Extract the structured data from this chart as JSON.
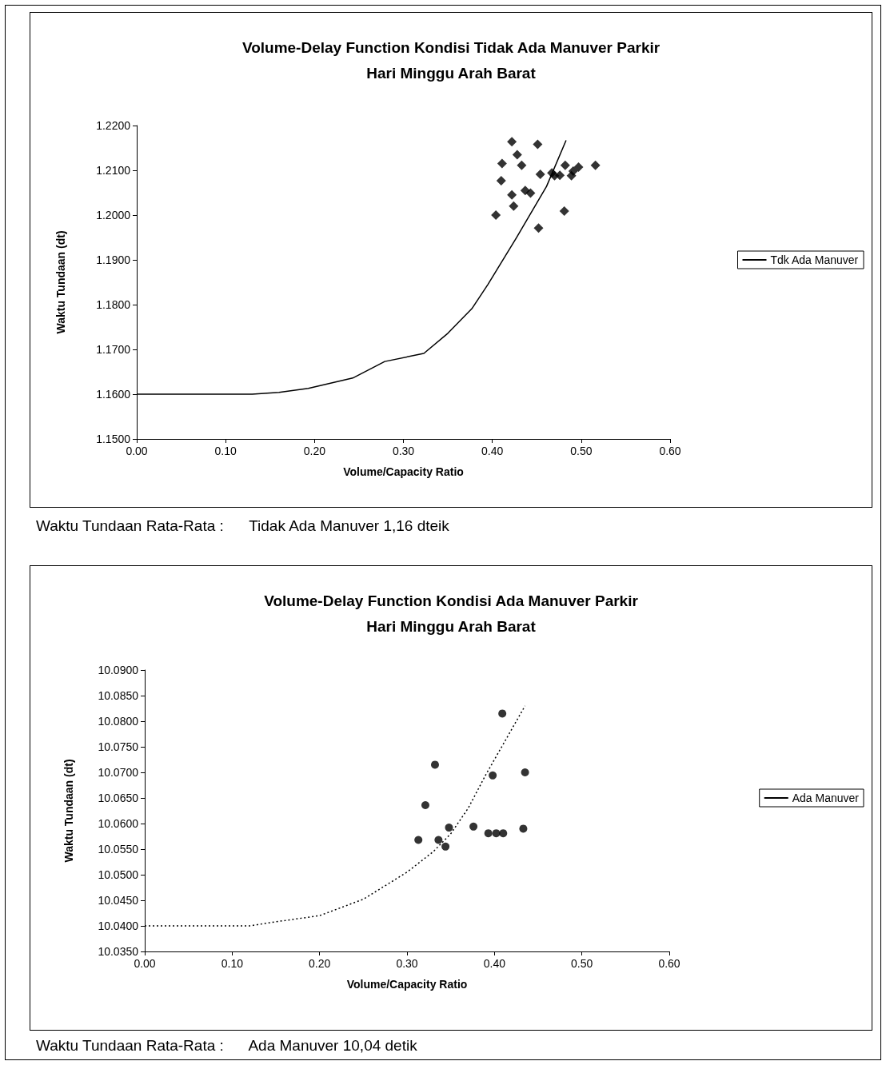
{
  "chart_data": [
    {
      "type": "scatter",
      "title": "Volume-Delay Function Kondisi Tidak Ada Manuver Parkir\nHari Minggu Arah Barat",
      "xlabel": "Volume/Capacity Ratio",
      "ylabel": "Waktu Tundaan (dt)",
      "xlim": [
        0,
        0.6
      ],
      "xticks": [
        {
          "value": 0,
          "label": "0.00"
        },
        {
          "value": 0.1,
          "label": "0.10"
        },
        {
          "value": 0.2,
          "label": "0.20"
        },
        {
          "value": 0.3,
          "label": "0.30"
        },
        {
          "value": 0.4,
          "label": "0.40"
        },
        {
          "value": 0.5,
          "label": "0.50"
        },
        {
          "value": 0.6,
          "label": "0.60"
        }
      ],
      "ylim": [
        1.15,
        1.22
      ],
      "yticks": [
        {
          "value": 1.15,
          "label": "1.1500"
        },
        {
          "value": 1.16,
          "label": "1.1600"
        },
        {
          "value": 1.17,
          "label": "1.1700"
        },
        {
          "value": 1.18,
          "label": "1.1800"
        },
        {
          "value": 1.19,
          "label": "1.1900"
        },
        {
          "value": 1.2,
          "label": "1.2000"
        },
        {
          "value": 1.21,
          "label": "1.2100"
        },
        {
          "value": 1.22,
          "label": "1.2200"
        }
      ],
      "grid": false,
      "legend": "right",
      "series": [
        {
          "type": "line",
          "name": "Tdk Ada Manuver",
          "color": "#000000",
          "marker": "none",
          "line_style": "solid",
          "x": [
            0,
            0.05,
            0.1,
            0.13,
            0.16,
            0.193,
            0.243,
            0.279,
            0.323,
            0.35,
            0.377,
            0.395,
            0.427,
            0.461,
            0.483
          ],
          "values": [
            1.16,
            1.16,
            1.16,
            1.16,
            1.1604,
            1.1613,
            1.1636,
            1.1673,
            1.1691,
            1.1736,
            1.1791,
            1.1845,
            1.1949,
            1.2064,
            1.2167
          ]
        },
        {
          "color": "#000000",
          "marker": "diamond",
          "x": [
            0.422,
            0.451,
            0.428,
            0.411,
            0.433,
            0.482,
            0.497,
            0.516,
            0.491,
            0.454,
            0.467,
            0.47,
            0.476,
            0.489,
            0.41,
            0.437,
            0.443,
            0.422,
            0.424,
            0.404,
            0.481,
            0.452
          ],
          "values": [
            1.2164,
            1.2158,
            1.2135,
            1.2115,
            1.2111,
            1.2111,
            1.2107,
            1.2111,
            1.2098,
            1.2091,
            1.2094,
            1.2088,
            1.2089,
            1.2088,
            1.2077,
            1.2055,
            1.2049,
            1.2045,
            1.202,
            1.2,
            1.2009,
            1.1971
          ]
        }
      ],
      "annotations": [
        "Waktu Tundaan Rata-Rata :      Tidak Ada Manuver 1,16 dteik"
      ]
    },
    {
      "type": "scatter",
      "title": "Volume-Delay Function Kondisi Ada Manuver Parkir\nHari Minggu Arah Barat",
      "xlabel": "Volume/Capacity Ratio",
      "ylabel": "Waktu Tundaan (dt)",
      "xlim": [
        0,
        0.6
      ],
      "xticks": [
        {
          "value": 0,
          "label": "0.00"
        },
        {
          "value": 0.1,
          "label": "0.10"
        },
        {
          "value": 0.2,
          "label": "0.20"
        },
        {
          "value": 0.3,
          "label": "0.30"
        },
        {
          "value": 0.4,
          "label": "0.40"
        },
        {
          "value": 0.5,
          "label": "0.50"
        },
        {
          "value": 0.6,
          "label": "0.60"
        }
      ],
      "ylim": [
        10.035,
        10.09
      ],
      "yticks": [
        {
          "value": 10.035,
          "label": "10.0350"
        },
        {
          "value": 10.04,
          "label": "10.0400"
        },
        {
          "value": 10.045,
          "label": "10.0450"
        },
        {
          "value": 10.05,
          "label": "10.0500"
        },
        {
          "value": 10.055,
          "label": "10.0550"
        },
        {
          "value": 10.06,
          "label": "10.0600"
        },
        {
          "value": 10.065,
          "label": "10.0650"
        },
        {
          "value": 10.07,
          "label": "10.0700"
        },
        {
          "value": 10.075,
          "label": "10.0750"
        },
        {
          "value": 10.08,
          "label": "10.0800"
        },
        {
          "value": 10.085,
          "label": "10.0850"
        },
        {
          "value": 10.09,
          "label": "10.0900"
        }
      ],
      "grid": false,
      "legend": "right",
      "series": [
        {
          "type": "line",
          "name": "Ada Manuver",
          "color": "#000000",
          "marker": "none",
          "line_style": "dotted",
          "x": [
            0,
            0.05,
            0.1,
            0.12,
            0.15,
            0.2,
            0.25,
            0.3,
            0.33,
            0.35,
            0.37,
            0.39,
            0.41,
            0.435
          ],
          "values": [
            10.04,
            10.04,
            10.04,
            10.04,
            10.0408,
            10.042,
            10.0452,
            10.0505,
            10.0545,
            10.058,
            10.063,
            10.0695,
            10.0755,
            10.083
          ]
        },
        {
          "color": "#000000",
          "marker": "circle",
          "x": [
            0.409,
            0.332,
            0.398,
            0.435,
            0.321,
            0.376,
            0.348,
            0.393,
            0.402,
            0.41,
            0.433,
            0.313,
            0.336,
            0.344
          ],
          "values": [
            10.0815,
            10.0715,
            10.0694,
            10.07,
            10.0636,
            10.0594,
            10.0592,
            10.0581,
            10.0581,
            10.0581,
            10.059,
            10.0568,
            10.0568,
            10.0555
          ]
        }
      ],
      "annotations": [
        "Waktu Tundaan Rata-Rata :      Ada Manuver 10,04 detik"
      ]
    }
  ]
}
